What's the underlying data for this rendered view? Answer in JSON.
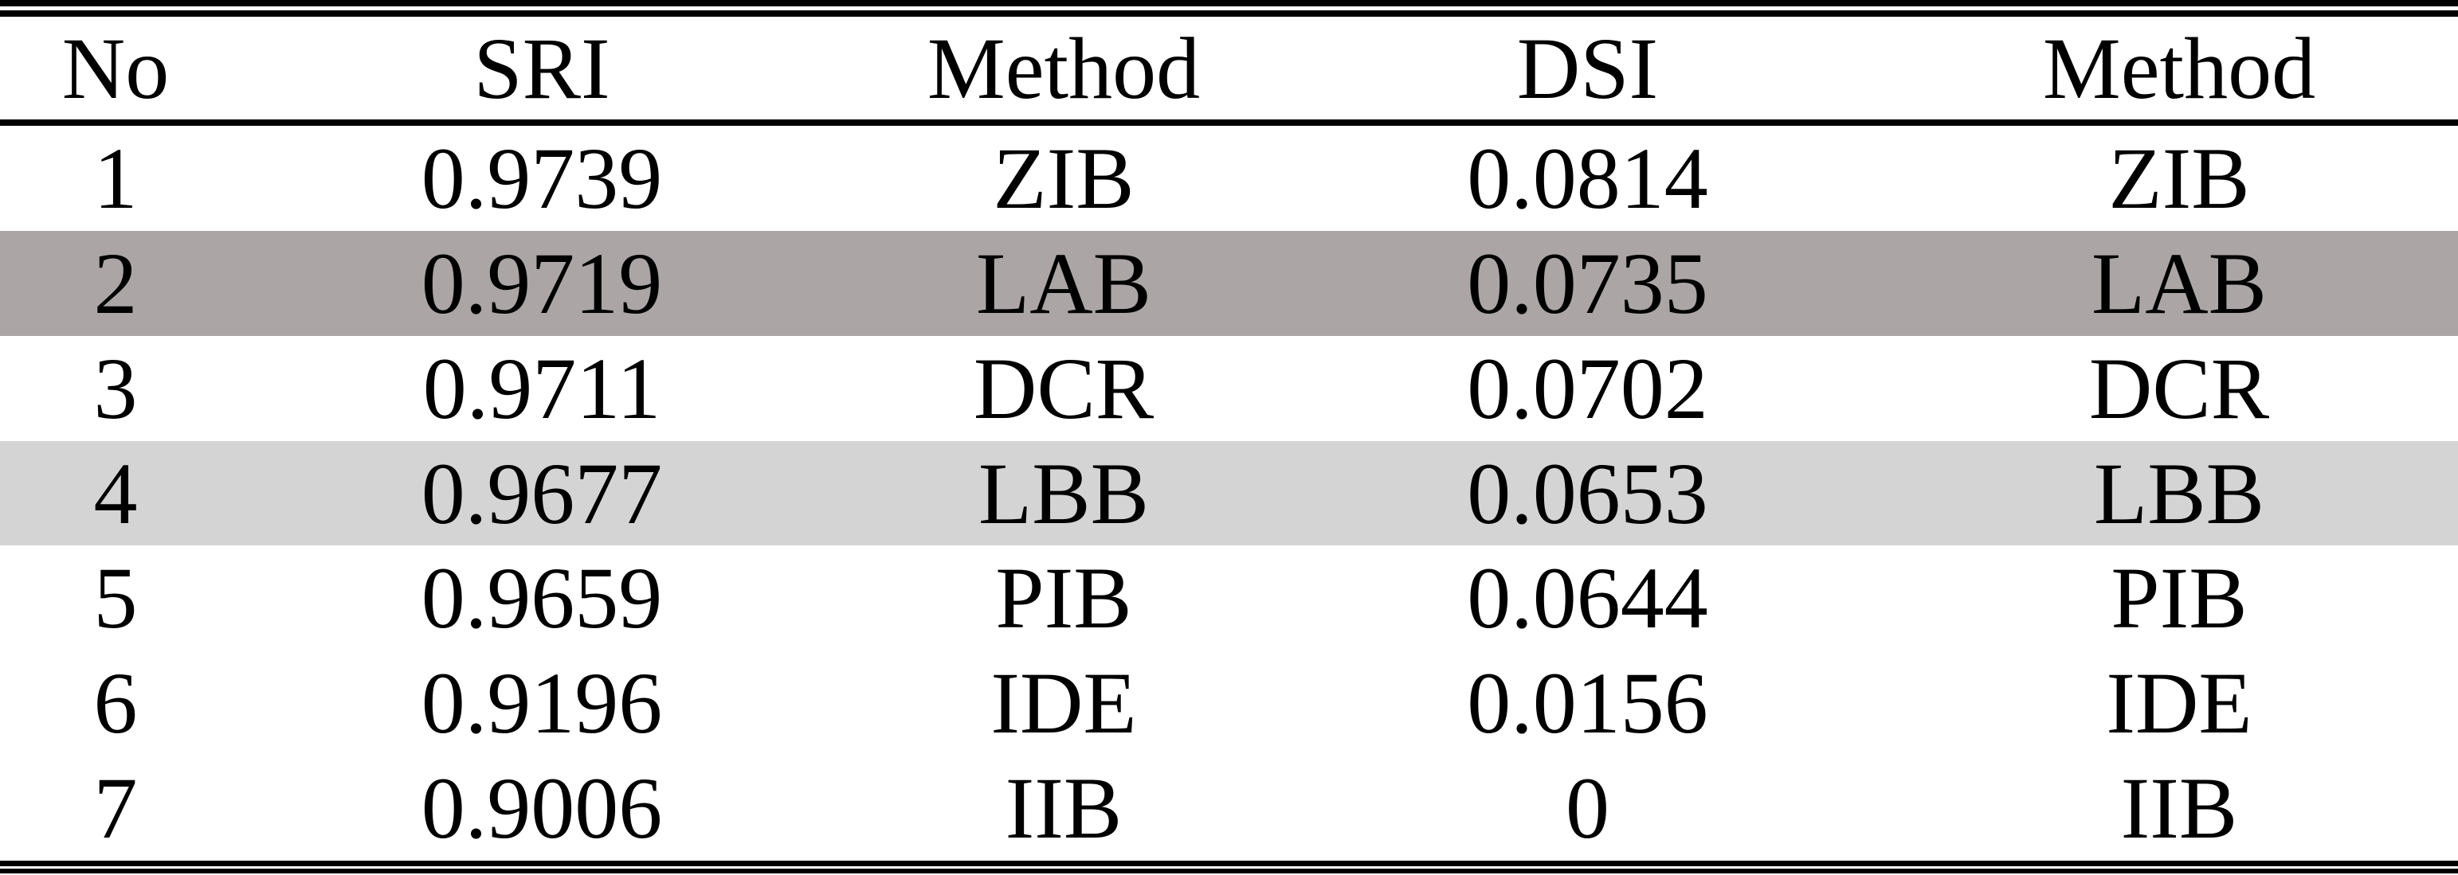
{
  "table": {
    "columns": [
      {
        "label": "No"
      },
      {
        "label": "SRI"
      },
      {
        "label": "Method"
      },
      {
        "label": "DSI"
      },
      {
        "label": "Method"
      }
    ],
    "rows": [
      {
        "no": "1",
        "sri": "0.9739",
        "sri_method": "ZIB",
        "dsi": "0.0814",
        "dsi_method": "ZIB",
        "highlight": null
      },
      {
        "no": "2",
        "sri": "0.9719",
        "sri_method": "LAB",
        "dsi": "0.0735",
        "dsi_method": "LAB",
        "highlight": "dark"
      },
      {
        "no": "3",
        "sri": "0.9711",
        "sri_method": "DCR",
        "dsi": "0.0702",
        "dsi_method": "DCR",
        "highlight": null
      },
      {
        "no": "4",
        "sri": "0.9677",
        "sri_method": "LBB",
        "dsi": "0.0653",
        "dsi_method": "LBB",
        "highlight": "light"
      },
      {
        "no": "5",
        "sri": "0.9659",
        "sri_method": "PIB",
        "dsi": "0.0644",
        "dsi_method": "PIB",
        "highlight": null
      },
      {
        "no": "6",
        "sri": "0.9196",
        "sri_method": "IDE",
        "dsi": "0.0156",
        "dsi_method": "IDE",
        "highlight": null
      },
      {
        "no": "7",
        "sri": "0.9006",
        "sri_method": "IIB",
        "dsi": "0",
        "dsi_method": "IIB",
        "highlight": null
      }
    ],
    "highlight_colors": {
      "dark": "#aba5a5",
      "light": "#d4d4d4"
    },
    "text_color": "#000000",
    "rule_color": "#000000"
  }
}
